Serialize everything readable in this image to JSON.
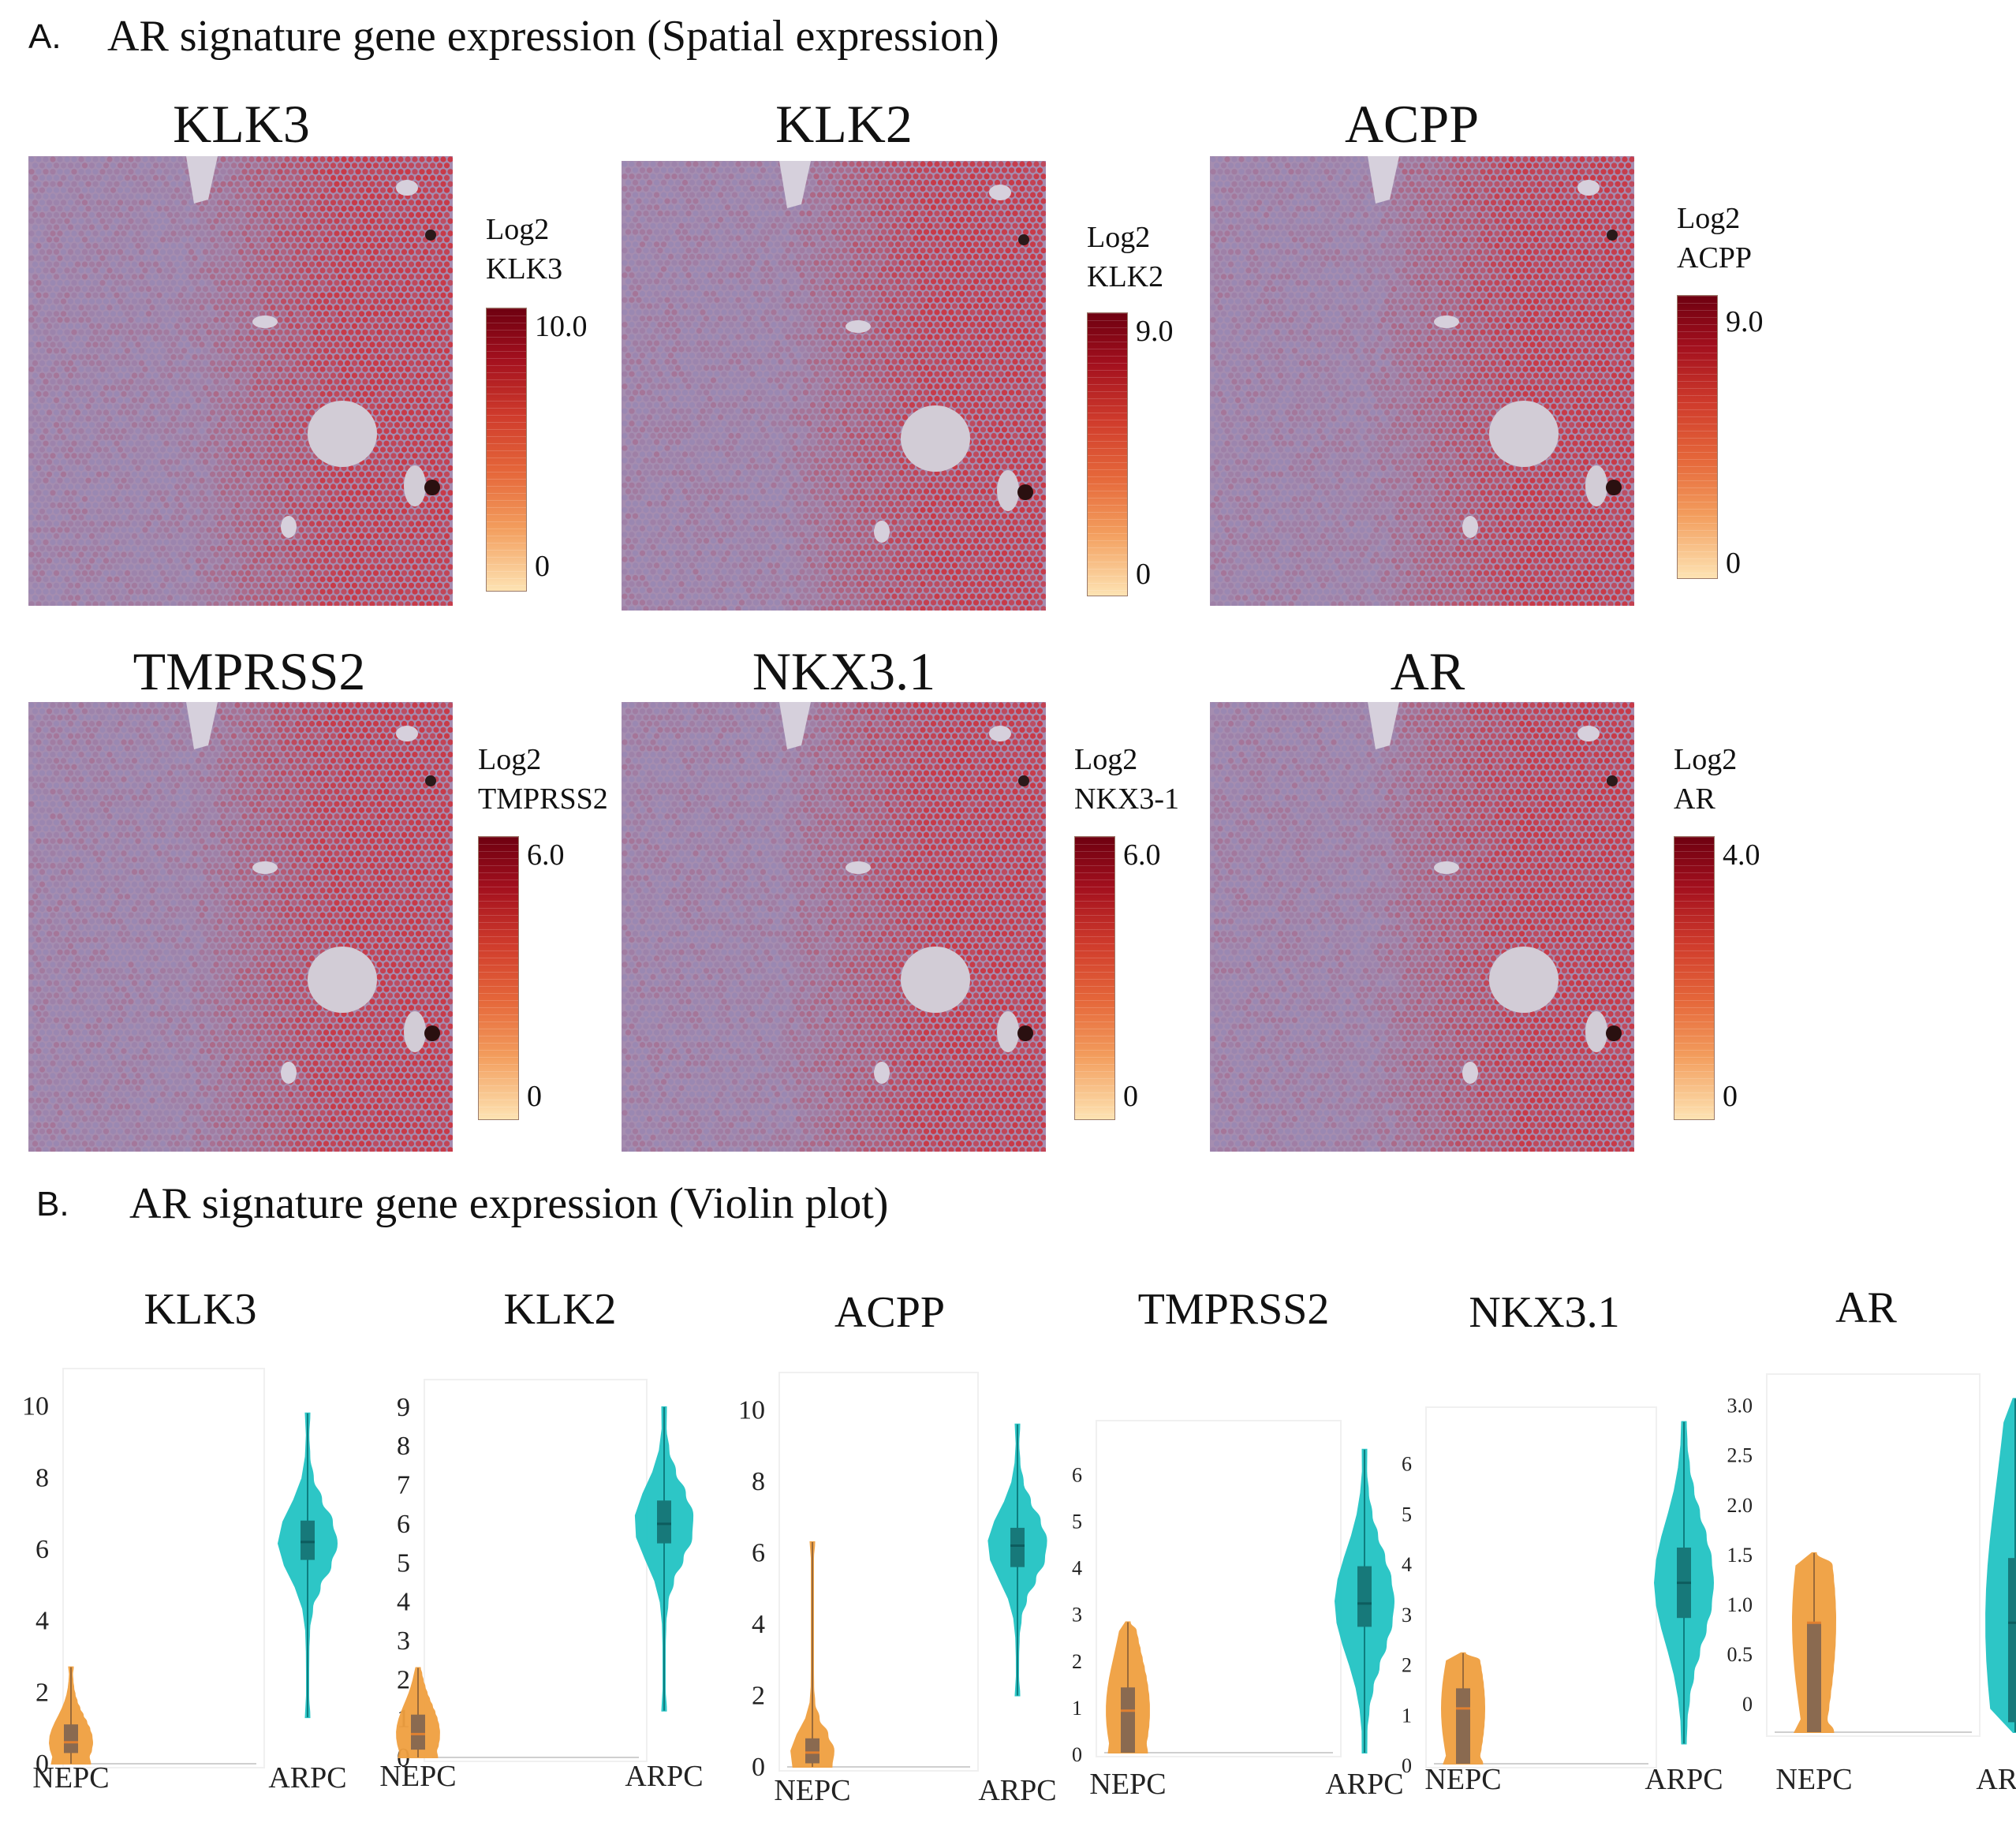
{
  "section_a": {
    "letter": "A.",
    "title": "AR signature gene expression (Spatial expression)"
  },
  "section_b": {
    "letter": "B.",
    "title": "AR signature gene expression (Violin plot)"
  },
  "spatial_panels": [
    {
      "title": "KLK3",
      "cb_label1": "Log2",
      "cb_label2": "KLK3",
      "cb_max": "10.0",
      "cb_min": "0"
    },
    {
      "title": "KLK2",
      "cb_label1": "Log2",
      "cb_label2": "KLK2",
      "cb_max": "9.0",
      "cb_min": "0"
    },
    {
      "title": "ACPP",
      "cb_label1": "Log2",
      "cb_label2": "ACPP",
      "cb_max": "9.0",
      "cb_min": "0"
    },
    {
      "title": "TMPRSS2",
      "cb_label1": "Log2",
      "cb_label2": "TMPRSS2",
      "cb_max": "6.0",
      "cb_min": "0"
    },
    {
      "title": "NKX3.1",
      "cb_label1": "Log2",
      "cb_label2": "NKX3-1",
      "cb_max": "6.0",
      "cb_min": "0"
    },
    {
      "title": "AR",
      "cb_label1": "Log2",
      "cb_label2": "AR",
      "cb_max": "4.0",
      "cb_min": "0"
    }
  ],
  "colors": {
    "nepc": "#f0a040",
    "arpc": "#22c4c4",
    "tissue_low": "#9a88b2",
    "tissue_high": "#c83a48"
  },
  "chart_data": [
    {
      "type": "violin",
      "title": "KLK3",
      "categories": [
        "NEPC",
        "ARPC"
      ],
      "yticks": [
        "0",
        "2",
        "4",
        "6",
        "8",
        "10"
      ],
      "ylim": [
        0,
        10.5
      ],
      "series": [
        {
          "name": "NEPC",
          "min": 0,
          "max": 2.7,
          "q1": 0.3,
          "median": 0.6,
          "q3": 1.1
        },
        {
          "name": "ARPC",
          "min": 1.3,
          "max": 9.8,
          "q1": 5.7,
          "median": 6.2,
          "q3": 6.8
        }
      ]
    },
    {
      "type": "violin",
      "title": "KLK2",
      "categories": [
        "NEPC",
        "ARPC"
      ],
      "yticks": [
        "0",
        "1",
        "2",
        "3",
        "4",
        "5",
        "6",
        "7",
        "8",
        "9"
      ],
      "ylim": [
        0,
        9.2
      ],
      "series": [
        {
          "name": "NEPC",
          "min": 0,
          "max": 2.3,
          "q1": 0.2,
          "median": 0.6,
          "q3": 1.1
        },
        {
          "name": "ARPC",
          "min": 1.2,
          "max": 9.0,
          "q1": 5.5,
          "median": 6.0,
          "q3": 6.6
        }
      ]
    },
    {
      "type": "violin",
      "title": "ACPP",
      "categories": [
        "NEPC",
        "ARPC"
      ],
      "yticks": [
        "0",
        "2",
        "4",
        "6",
        "8",
        "10"
      ],
      "ylim": [
        0,
        10.5
      ],
      "series": [
        {
          "name": "NEPC",
          "min": 0,
          "max": 6.3,
          "q1": 0.1,
          "median": 0.4,
          "q3": 0.8
        },
        {
          "name": "ARPC",
          "min": 2.0,
          "max": 9.6,
          "q1": 5.6,
          "median": 6.2,
          "q3": 6.7
        }
      ]
    },
    {
      "type": "violin",
      "title": "TMPRSS2",
      "categories": [
        "NEPC",
        "ARPC"
      ],
      "yticks": [
        "0",
        "1",
        "2",
        "3",
        "4",
        "5",
        "6"
      ],
      "ylim": [
        0,
        6.7
      ],
      "series": [
        {
          "name": "NEPC",
          "min": 0,
          "max": 2.8,
          "q1": 0,
          "median": 0.9,
          "q3": 1.4
        },
        {
          "name": "ARPC",
          "min": 0,
          "max": 6.5,
          "q1": 2.7,
          "median": 3.2,
          "q3": 4.0
        }
      ]
    },
    {
      "type": "violin",
      "title": "NKX3.1",
      "categories": [
        "NEPC",
        "ARPC"
      ],
      "yticks": [
        "0",
        "1",
        "2",
        "3",
        "4",
        "5",
        "6"
      ],
      "ylim": [
        0,
        6.7
      ],
      "series": [
        {
          "name": "NEPC",
          "min": 0,
          "max": 2.2,
          "q1": 0,
          "median": 1.1,
          "q3": 1.5
        },
        {
          "name": "ARPC",
          "min": 0.4,
          "max": 6.8,
          "q1": 2.9,
          "median": 3.6,
          "q3": 4.3
        }
      ]
    },
    {
      "type": "violin",
      "title": "AR",
      "categories": [
        "NEPC",
        "ARPC"
      ],
      "yticks": [
        "0",
        "0.5",
        "1.0",
        "1.5",
        "2.0",
        "2.5",
        "3.0"
      ],
      "ylim": [
        -0.3,
        3.1
      ],
      "series": [
        {
          "name": "NEPC",
          "min": -0.3,
          "max": 1.5,
          "q1": -0.3,
          "median": 0.8,
          "q3": 0.8
        },
        {
          "name": "ARPC",
          "min": -0.3,
          "max": 3.05,
          "q1": -0.2,
          "median": 0.8,
          "q3": 1.45
        }
      ]
    }
  ]
}
